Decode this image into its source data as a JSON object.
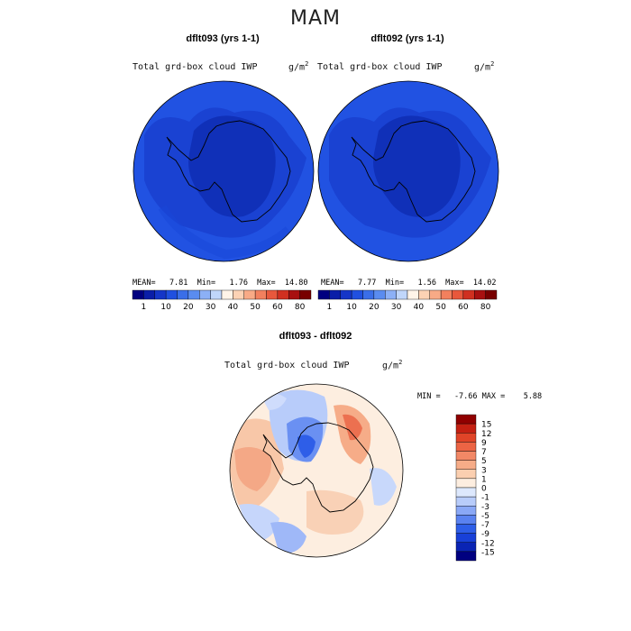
{
  "figure": {
    "season": "MAM",
    "variable": "Total grd-box cloud IWP",
    "units": "g/m",
    "units_exp": "2"
  },
  "panel_left": {
    "title": "dflt093 (yrs 1-1)",
    "stats": "MEAN=   7.81  Min=   1.76  Max=  14.80"
  },
  "panel_right": {
    "title": "dflt092 (yrs 1-1)",
    "stats": "MEAN=   7.77  Min=   1.56  Max=  14.02"
  },
  "panel_diff": {
    "title": "dflt093 - dflt092",
    "stats": "MIN =   -7.66 MAX =    5.88"
  },
  "colors": {
    "abs_scale": [
      "#000080",
      "#0a1ea8",
      "#1536c8",
      "#2050e0",
      "#3a6ee8",
      "#5a8cf0",
      "#8cb0f6",
      "#c0d6fa",
      "#fff4e8",
      "#fcd2b4",
      "#f8aa86",
      "#f2805e",
      "#e8583c",
      "#d03020",
      "#a81010",
      "#780000"
    ],
    "diff_scale": [
      "#000080",
      "#0a24b4",
      "#1840d8",
      "#2e5ee8",
      "#5a82f0",
      "#8aa8f6",
      "#b8ccfa",
      "#dde8fd",
      "#fdeee0",
      "#fbcfb0",
      "#f6ac88",
      "#f28866",
      "#ec6444",
      "#e04428",
      "#c42012",
      "#900000"
    ],
    "ocean_abs": "#1f4fe0",
    "interior_abs": "#1539c8",
    "coast": "#000000"
  },
  "chart_data": [
    {
      "type": "heatmap",
      "name": "dflt093",
      "colorbar_ticks": [
        "1",
        "10",
        "20",
        "30",
        "40",
        "50",
        "60",
        "80"
      ],
      "mean": 7.81,
      "min": 1.76,
      "max": 14.8
    },
    {
      "type": "heatmap",
      "name": "dflt092",
      "colorbar_ticks": [
        "1",
        "10",
        "20",
        "30",
        "40",
        "50",
        "60",
        "80"
      ],
      "mean": 7.77,
      "min": 1.56,
      "max": 14.02
    },
    {
      "type": "heatmap",
      "name": "dflt093 - dflt092",
      "colorbar_ticks": [
        "15",
        "12",
        "9",
        "7",
        "5",
        "3",
        "1",
        "0",
        "-1",
        "-3",
        "-5",
        "-7",
        "-9",
        "-12",
        "-15"
      ],
      "min": -7.66,
      "max": 5.88
    }
  ]
}
